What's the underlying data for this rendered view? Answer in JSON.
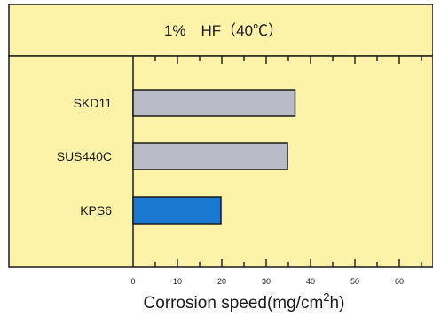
{
  "chart_data": {
    "type": "bar",
    "orientation": "horizontal",
    "title": "1%　HF（40℃）",
    "xlabel": "Corrosion speed(mg/cm",
    "xlabel_sup": "2",
    "xlabel_suffix": "h)",
    "categories": [
      "SKD11",
      "SUS440C",
      "KPS6"
    ],
    "values": [
      36.5,
      34.8,
      19.8
    ],
    "xlim": [
      0,
      67
    ],
    "xticks": [
      0,
      10,
      20,
      30,
      40,
      50,
      60
    ],
    "xtick_labels": [
      "0",
      "10",
      "20",
      "30",
      "40",
      "50",
      "60"
    ],
    "bar_colors": [
      "#b9bcc6",
      "#b9bcc6",
      "#1a78d0"
    ],
    "background_color": "#fcf2a8",
    "grid": false,
    "legend": "none"
  }
}
